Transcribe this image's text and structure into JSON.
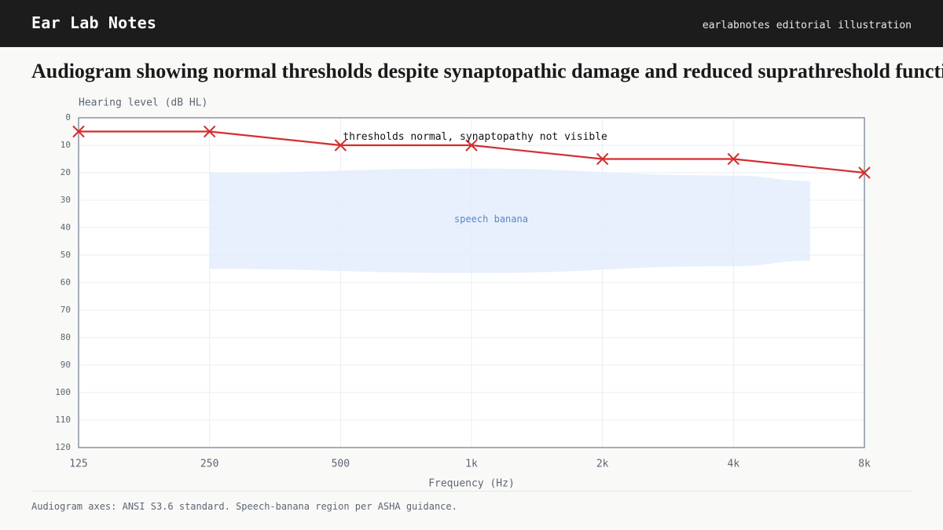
{
  "header": {
    "brand": "Ear Lab Notes",
    "tagline": "earlabnotes editorial illustration"
  },
  "page": {
    "title": "Audiogram showing normal thresholds despite synaptopathic damage and reduced suprathreshold function",
    "footnote": "Audiogram axes: ANSI S3.6 standard. Speech-banana region per ASHA guidance."
  },
  "colors": {
    "header_bg": "#1c1c1c",
    "series": "#d32f2f",
    "banana_fill": "#e3edfc",
    "banana_label": "#5b85c7",
    "axis": "#8a93a3",
    "grid": "#e9ecf1",
    "muted_text": "#5d6675"
  },
  "chart_data": {
    "type": "line",
    "xlabel": "Frequency (Hz)",
    "ylabel": "Hearing level (dB HL)",
    "x_scale": "log2",
    "y_inverted": true,
    "ylim": [
      0,
      120
    ],
    "y_ticks": [
      0,
      10,
      20,
      30,
      40,
      50,
      60,
      70,
      80,
      90,
      100,
      110,
      120
    ],
    "x": [
      125,
      250,
      500,
      1000,
      2000,
      4000,
      8000
    ],
    "x_tick_labels": [
      "125",
      "250",
      "500",
      "1k",
      "2k",
      "4k",
      "8k"
    ],
    "series": [
      {
        "marker": "x",
        "values": [
          5,
          5,
          10,
          10,
          15,
          15,
          20
        ]
      }
    ],
    "annotations": [
      {
        "text": "thresholds normal, synaptopathy not visible",
        "x": 500,
        "y": 7
      }
    ],
    "regions": [
      {
        "label": "speech banana",
        "top": [
          [
            250,
            20
          ],
          [
            1000,
            18.5
          ],
          [
            4000,
            21
          ],
          [
            6000,
            23
          ]
        ],
        "bottom": [
          [
            250,
            55
          ],
          [
            1000,
            56.5
          ],
          [
            4000,
            54
          ],
          [
            6000,
            52
          ]
        ]
      }
    ],
    "grid": true
  }
}
